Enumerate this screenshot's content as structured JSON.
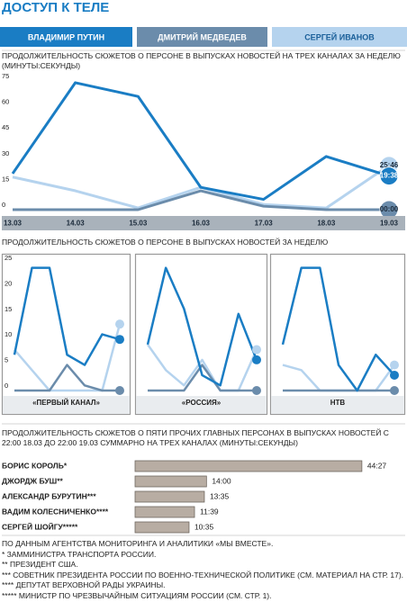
{
  "title": "ДОСТУП К ТЕЛЕ",
  "chart_data": [
    {
      "type": "line",
      "title": "ПРОДОЛЖИТЕЛЬНОСТЬ СЮЖЕТОВ О ПЕРСОНЕ В ВЫПУСКАХ НОВОСТЕЙ НА ТРЕХ КАНАЛАХ ЗА НЕДЕЛЮ (МИНУТЫ:СЕКУНДЫ)",
      "categories": [
        "13.03",
        "14.03",
        "15.03",
        "16.03",
        "17.03",
        "18.03",
        "19.03"
      ],
      "ylim": [
        0,
        75
      ],
      "yticks": [
        0,
        15,
        30,
        45,
        60,
        75
      ],
      "series": [
        {
          "name": "ВЛАДИМИР ПУТИН",
          "color": "#1a7dc4",
          "values": [
            21,
            74,
            66,
            13,
            6,
            31,
            19.63
          ],
          "value_labels": [
            null,
            null,
            null,
            null,
            null,
            null,
            "19:38"
          ]
        },
        {
          "name": "ДМИТРИЙ МЕДВЕДЕВ",
          "color": "#6b8cab",
          "values": [
            0,
            0,
            0,
            11,
            2,
            0,
            0
          ],
          "value_labels": [
            null,
            null,
            null,
            null,
            null,
            null,
            "00:00"
          ]
        },
        {
          "name": "СЕРГЕЙ ИВАНОВ",
          "color": "#b5d3ee",
          "values": [
            19,
            11,
            1,
            13,
            3,
            1,
            25.77
          ],
          "value_labels": [
            null,
            null,
            null,
            null,
            null,
            null,
            "25:46"
          ]
        }
      ]
    },
    {
      "type": "line",
      "title": "ПРОДОЛЖИТЕЛЬНОСТЬ СЮЖЕТОВ О ПЕРСОНЕ В ВЫПУСКАХ НОВОСТЕЙ ЗА НЕДЕЛЮ",
      "x_label": "«ПЕРВЫЙ КАНАЛ»",
      "ylim": [
        0,
        25
      ],
      "yticks": [
        0,
        5,
        10,
        15,
        20,
        25
      ],
      "series": [
        {
          "color": "#1a7dc4",
          "values": [
            7,
            24,
            24,
            7,
            5,
            11,
            10
          ]
        },
        {
          "color": "#6b8cab",
          "values": [
            0,
            0,
            0,
            5,
            1,
            0,
            0
          ]
        },
        {
          "color": "#b5d3ee",
          "values": [
            8,
            4,
            0,
            0,
            0,
            0,
            13
          ]
        }
      ]
    },
    {
      "type": "line",
      "x_label": "«РОССИЯ»",
      "ylim": [
        0,
        25
      ],
      "series": [
        {
          "color": "#1a7dc4",
          "values": [
            9,
            24,
            16,
            3,
            1,
            15,
            6
          ]
        },
        {
          "color": "#6b8cab",
          "values": [
            0,
            0,
            0,
            5,
            0,
            0,
            0
          ]
        },
        {
          "color": "#b5d3ee",
          "values": [
            9,
            4,
            1,
            6,
            0,
            0,
            8
          ]
        }
      ]
    },
    {
      "type": "line",
      "x_label": "НТВ",
      "ylim": [
        0,
        25
      ],
      "series": [
        {
          "color": "#1a7dc4",
          "values": [
            9,
            24,
            24,
            5,
            0,
            7,
            3
          ]
        },
        {
          "color": "#6b8cab",
          "values": [
            0,
            0,
            0,
            0,
            0,
            0,
            0
          ]
        },
        {
          "color": "#b5d3ee",
          "values": [
            5,
            4,
            0,
            0,
            0,
            0,
            5
          ]
        }
      ]
    },
    {
      "type": "hbar",
      "title": "ПРОДОЛЖИТЕЛЬНОСТЬ СЮЖЕТОВ О ПЯТИ ПРОЧИХ ГЛАВНЫХ ПЕРСОНАХ В ВЫПУСКАХ НОВОСТЕЙ С 22:00 18.03 ДО 22:00 19.03 СУММАРНО НА ТРЕХ КАНАЛАХ (МИНУТЫ:СЕКУНДЫ)",
      "categories": [
        "БОРИС КОРОЛЬ*",
        "ДЖОРДЖ БУШ**",
        "АЛЕКСАНДР БУРУТИН***",
        "ВАДИМ КОЛЕСНИЧЕНКО****",
        "СЕРГЕЙ ШОЙГУ*****"
      ],
      "values": [
        44.45,
        14.0,
        13.58,
        11.65,
        10.58
      ],
      "value_labels": [
        "44:27",
        "14:00",
        "13:35",
        "11:39",
        "10:35"
      ],
      "xlim": [
        0,
        45
      ],
      "color": "#b8ada3"
    }
  ],
  "footnotes": [
    "ПО ДАННЫМ АГЕНТСТВА МОНИТОРИНГА И АНАЛИТИКИ «МЫ ВМЕСТЕ».",
    "* ЗАММИНИСТРА ТРАНСПОРТА РОССИИ.",
    "** ПРЕЗИДЕНТ США.",
    "*** СОВЕТНИК ПРЕЗИДЕНТА РОССИИ ПО ВОЕННО-ТЕХНИЧЕСКОЙ ПОЛИТИКЕ (СМ. МАТЕРИАЛ НА СТР. 17).",
    "**** ДЕПУТАТ ВЕРХОВНОЙ РАДЫ УКРАИНЫ.",
    "***** МИНИСТР ПО ЧРЕЗВЫЧАЙНЫМ СИТУАЦИЯМ РОССИИ (СМ. СТР. 1)."
  ]
}
